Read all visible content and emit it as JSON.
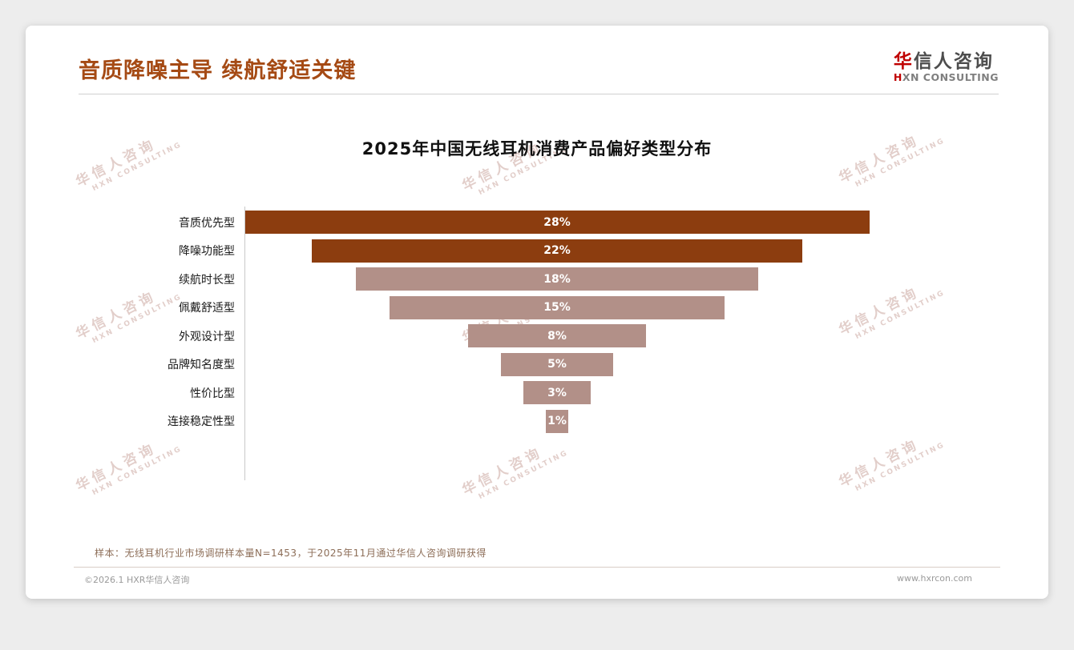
{
  "header": {
    "title": "音质降噪主导 续航舒适关键"
  },
  "logo": {
    "cn_first": "华",
    "cn_rest": "信人咨询",
    "en_first": "H",
    "en_rest": "XN CONSULTING"
  },
  "watermark": {
    "cn": "华信人咨询",
    "en": "HXN CONSULTING"
  },
  "chart_data": {
    "type": "bar",
    "title": "2025年中国无线耳机消费产品偏好类型分布",
    "orientation": "horizontal",
    "layout_hint": "centered funnel-style bars, category labels on left axis, value labels inside bars, no gridlines",
    "categories": [
      "音质优先型",
      "降噪功能型",
      "续航时长型",
      "佩戴舒适型",
      "外观设计型",
      "品牌知名度型",
      "性价比型",
      "连接稳定性型"
    ],
    "values": [
      28,
      22,
      18,
      15,
      8,
      5,
      3,
      1
    ],
    "value_labels": [
      "28%",
      "22%",
      "18%",
      "15%",
      "8%",
      "5%",
      "3%",
      "1%"
    ],
    "unit": "%",
    "xlim": [
      0,
      28
    ],
    "colors": {
      "dark_brown": "#8C3D0F",
      "rosy_brown": "#B29088"
    },
    "bar_colors": [
      "dark_brown",
      "dark_brown",
      "rosy_brown",
      "rosy_brown",
      "rosy_brown",
      "rosy_brown",
      "rosy_brown",
      "rosy_brown"
    ]
  },
  "note": "样本：无线耳机行业市场调研样本量N=1453，于2025年11月通过华信人咨询调研获得",
  "footer": {
    "left": "©2026.1 HXR华信人咨询",
    "right": "www.hxrcon.com"
  }
}
